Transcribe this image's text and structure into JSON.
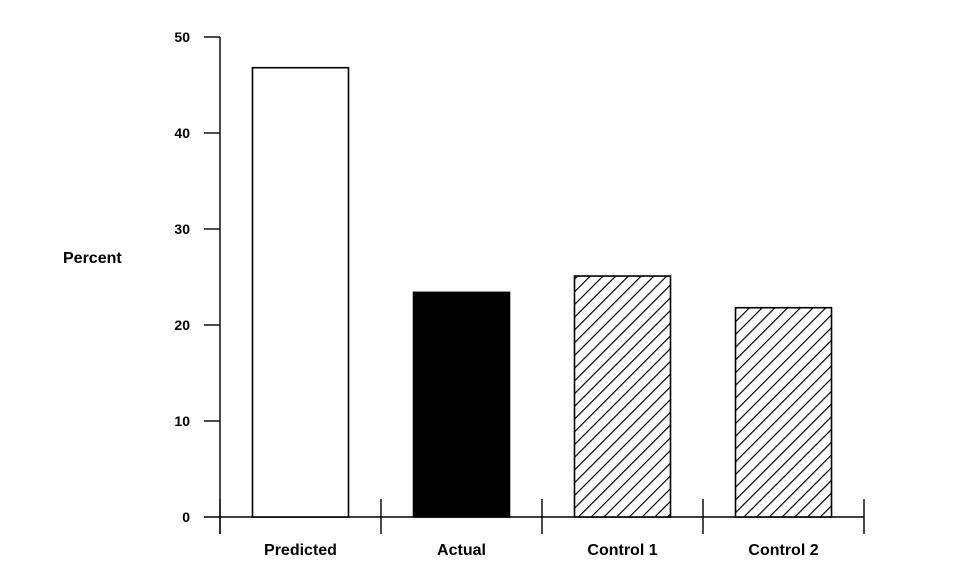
{
  "chart_data": {
    "type": "bar",
    "title": "",
    "xlabel": "",
    "ylabel": "Percent",
    "ylim": [
      0,
      50
    ],
    "yticks": [
      0,
      10,
      20,
      30,
      40,
      50
    ],
    "ytick_labels": [
      "0",
      "10",
      "20",
      "30",
      "40",
      "50"
    ],
    "categories": [
      "Predicted",
      "Actual",
      "Control 1",
      "Control 2"
    ],
    "values": [
      46.8,
      23.4,
      25.1,
      21.8
    ],
    "fills": [
      "white",
      "solid",
      "hatched",
      "hatched"
    ],
    "bar_colors": [
      "#ffffff",
      "#000000",
      "#000000",
      "#000000"
    ],
    "grid": false,
    "legend": "none"
  }
}
